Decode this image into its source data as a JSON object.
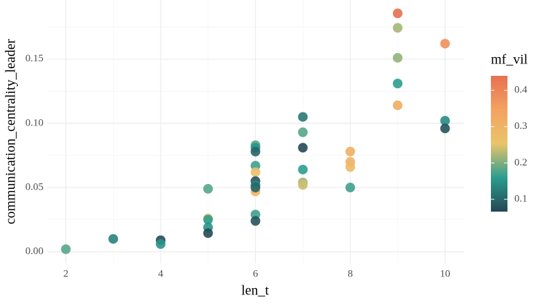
{
  "chart_data": {
    "type": "scatter",
    "x_label": "len_t",
    "y_label": "communication_centrality_leader",
    "xlim": [
      1.6,
      10.4
    ],
    "ylim": [
      -0.009,
      0.196
    ],
    "xticks": [
      2,
      4,
      6,
      8,
      10
    ],
    "yticks": [
      {
        "value": 0,
        "label": "0.00"
      },
      0.05,
      {
        "value": 0.1,
        "label": "0.10"
      },
      0.15
    ],
    "xminor": [
      3,
      5,
      7,
      9
    ],
    "yminor": [
      0.025,
      0.075,
      0.125,
      0.175
    ],
    "grid": true,
    "color_title": "mf_vil",
    "color_lim": [
      0.066,
      0.44
    ],
    "color_ticks": [
      0.1,
      0.2,
      0.3,
      0.4
    ],
    "palette": [
      "#264653",
      "#2a9d8f",
      "#e9c46a",
      "#f4a261",
      "#e76f51"
    ],
    "series": [
      {
        "x": [
          2,
          3,
          4,
          4,
          5,
          5,
          5,
          5,
          5,
          6,
          6,
          6,
          6,
          6,
          6,
          6,
          6,
          6,
          6,
          6,
          7,
          7,
          7,
          7,
          7,
          7,
          8,
          8,
          8,
          8,
          9,
          9,
          9,
          9,
          9,
          10,
          10,
          10
        ],
        "values": [
          0.002,
          0.01,
          0.009,
          0.006,
          0.049,
          0.026,
          0.025,
          0.019,
          0.0145,
          0.083,
          0.081,
          0.078,
          0.067,
          0.062,
          0.055,
          0.052,
          0.047,
          0.05,
          0.029,
          0.024,
          0.105,
          0.093,
          0.081,
          0.064,
          0.054,
          0.052,
          0.078,
          0.07,
          0.066,
          0.05,
          0.1856,
          0.1743,
          0.151,
          0.131,
          0.114,
          0.162,
          0.102,
          0.096
        ],
        "color_values": [
          0.18,
          0.13,
          0.07,
          0.15,
          0.18,
          0.27,
          0.16,
          0.15,
          0.07,
          0.18,
          0.15,
          0.1,
          0.17,
          0.26,
          0.08,
          0.13,
          0.3,
          0.1,
          0.17,
          0.08,
          0.12,
          0.18,
          0.07,
          0.16,
          0.22,
          0.24,
          0.31,
          0.3,
          0.28,
          0.17,
          0.44,
          0.22,
          0.21,
          0.16,
          0.32,
          0.38,
          0.14,
          0.08
        ]
      }
    ]
  }
}
